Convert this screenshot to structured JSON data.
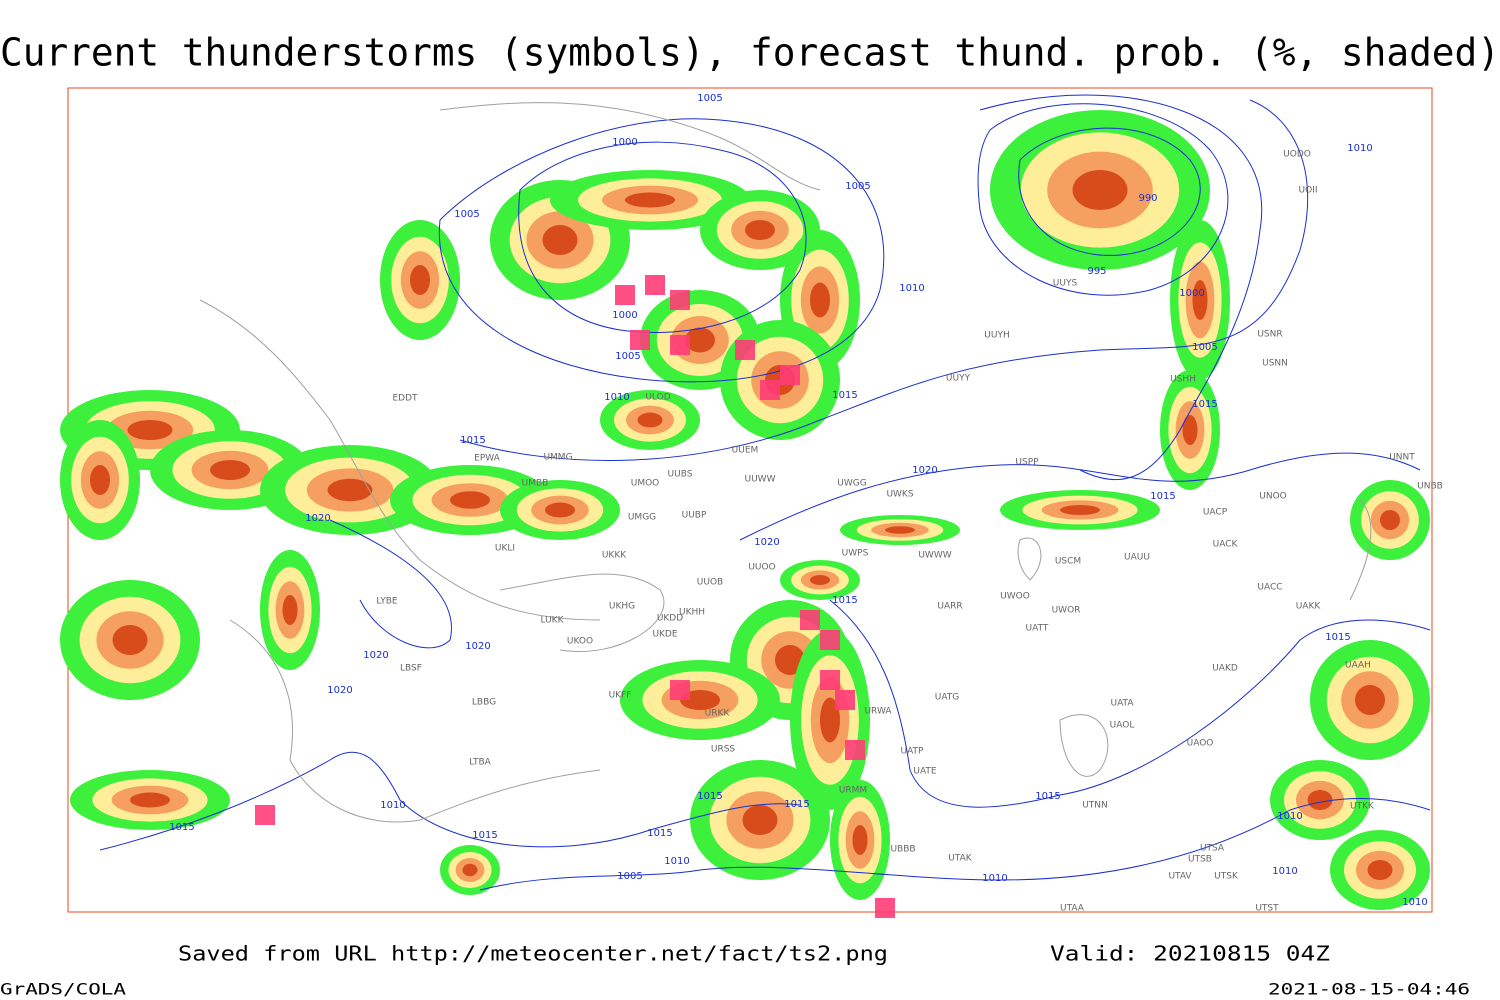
{
  "header": {
    "title": "Current thunderstorms (symbols), forecast thund. prob. (%, shaded)"
  },
  "footer": {
    "saved": "Saved from URL http://meteocenter.net/fact/ts2.png",
    "valid": "Valid: 20210815 04Z",
    "software": "GrADS/COLA",
    "timestamp": "2021-08-15-04:46"
  },
  "isobar_labels": [
    "1005",
    "1000",
    "1005",
    "1005",
    "1010",
    "1000",
    "1005",
    "1010",
    "1015",
    "1015",
    "1020",
    "1020",
    "1020",
    "1020",
    "1020",
    "1020",
    "1015",
    "1015",
    "1015",
    "1010",
    "990",
    "995",
    "1000",
    "1005",
    "1015",
    "1015",
    "1010",
    "1015",
    "1015",
    "1015",
    "1010",
    "1005",
    "1015",
    "1010",
    "1015",
    "1010",
    "1010",
    "1010"
  ],
  "stations": [
    "ULOD",
    "EDDT",
    "EPWA",
    "UMMG",
    "UMBB",
    "UMOO",
    "UUBS",
    "UUEM",
    "UUWW",
    "UWGG",
    "UWKS",
    "UMGG",
    "UUBP",
    "UKLI",
    "UKKK",
    "UUOO",
    "UWWW",
    "UWPS",
    "USPP",
    "UUYY",
    "UUYH",
    "UUYS",
    "USHH",
    "USNR",
    "USNN",
    "UODO",
    "UOII",
    "UNNT",
    "UNBB",
    "UNOO",
    "UACP",
    "UACK",
    "UAUU",
    "USCM",
    "UWOO",
    "UWOR",
    "UARR",
    "UATT",
    "UAKK",
    "UACC",
    "UAKD",
    "UATG",
    "UATA",
    "UAOL",
    "UAOO",
    "UATP",
    "UATE",
    "UTNN",
    "UTAK",
    "UTAA",
    "UTSA",
    "UTSB",
    "UTAV",
    "UTSK",
    "UTST",
    "UUOB",
    "UKHH",
    "UKDD",
    "UKDE",
    "UKHG",
    "LUKK",
    "UKOO",
    "LBSF",
    "LBBG",
    "LTBA",
    "LYBE",
    "URKK",
    "URWA",
    "URMM",
    "UBBB",
    "URSS",
    "UKFF",
    "UAAH",
    "UTKK"
  ]
}
